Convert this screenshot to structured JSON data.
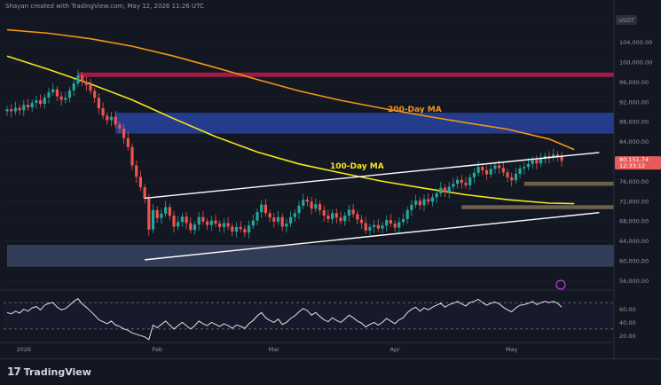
{
  "header": {
    "credit": "Shayan   created with TradingView.com, May 12, 2026 11:26 UTC"
  },
  "footer": {
    "brand": "TradingView"
  },
  "colors": {
    "background": "#131722",
    "up": "#26a69a",
    "down": "#ef5350",
    "ma200": "#f7931a",
    "ma100": "#f5e71b",
    "supply_zone": "#3b5bdb",
    "red_zone": "#c2185b",
    "demand_zone": "#5d6b8f",
    "rsi": "#e0e3eb"
  },
  "chart_data": {
    "type": "candlestick",
    "currency": "USDT",
    "price_axis": {
      "ticks": [
        "108,000.00",
        "104,000.00",
        "100,000.00",
        "96,000.00",
        "92,000.00",
        "88,000.00",
        "84,000.00",
        "80,000.00",
        "76,000.00",
        "72,000.00",
        "68,000.00",
        "64,000.00",
        "60,000.00",
        "56,000.00"
      ],
      "ylim": [
        55000,
        110000
      ]
    },
    "current_price": "80,151.74",
    "countdown": "12:33:12",
    "time_axis": [
      "2026",
      "Feb",
      "Mar",
      "Apr",
      "May"
    ],
    "annotations": {
      "ma200_label": "200-Day MA",
      "ma100_label": "100-Day MA"
    },
    "ma200": [
      {
        "t": 0,
        "v": 106500
      },
      {
        "t": 10,
        "v": 105800
      },
      {
        "t": 20,
        "v": 104700
      },
      {
        "t": 30,
        "v": 103200
      },
      {
        "t": 40,
        "v": 101200
      },
      {
        "t": 50,
        "v": 98900
      },
      {
        "t": 60,
        "v": 96500
      },
      {
        "t": 70,
        "v": 94200
      },
      {
        "t": 80,
        "v": 92300
      },
      {
        "t": 90,
        "v": 90700
      },
      {
        "t": 100,
        "v": 89200
      },
      {
        "t": 110,
        "v": 87800
      },
      {
        "t": 120,
        "v": 86500
      },
      {
        "t": 130,
        "v": 84500
      },
      {
        "t": 136,
        "v": 82400
      }
    ],
    "ma100": [
      {
        "t": 0,
        "v": 101200
      },
      {
        "t": 10,
        "v": 98500
      },
      {
        "t": 20,
        "v": 95600
      },
      {
        "t": 30,
        "v": 92400
      },
      {
        "t": 40,
        "v": 88600
      },
      {
        "t": 50,
        "v": 85000
      },
      {
        "t": 60,
        "v": 81900
      },
      {
        "t": 70,
        "v": 79500
      },
      {
        "t": 80,
        "v": 77700
      },
      {
        "t": 90,
        "v": 76000
      },
      {
        "t": 100,
        "v": 74600
      },
      {
        "t": 110,
        "v": 73300
      },
      {
        "t": 120,
        "v": 72300
      },
      {
        "t": 130,
        "v": 71600
      },
      {
        "t": 136,
        "v": 71500
      }
    ],
    "channel": {
      "upper": [
        {
          "t": 33,
          "v": 72600
        },
        {
          "t": 142,
          "v": 81800
        }
      ],
      "lower": [
        {
          "t": 33,
          "v": 60200
        },
        {
          "t": 142,
          "v": 69700
        }
      ]
    },
    "zones": [
      {
        "kind": "red",
        "t0": 17,
        "t1": 150,
        "v0": 97000,
        "v1": 97900
      },
      {
        "kind": "supply",
        "t0": 26,
        "t1": 150,
        "v0": 85600,
        "v1": 89800
      },
      {
        "kind": "demand-low",
        "t0": 0,
        "t1": 150,
        "v0": 58800,
        "v1": 63200
      },
      {
        "kind": "fvg",
        "t0": 124,
        "t1": 150,
        "v0": 75100,
        "v1": 75900
      },
      {
        "kind": "fvg",
        "t0": 109,
        "t1": 150,
        "v0": 70400,
        "v1": 71200
      }
    ],
    "close_series": [
      90500,
      90100,
      90800,
      90300,
      91400,
      90900,
      91800,
      92300,
      91600,
      92900,
      93900,
      94500,
      93100,
      92400,
      92800,
      94300,
      95700,
      97300,
      96100,
      95400,
      94200,
      92800,
      90700,
      89200,
      88300,
      89000,
      87400,
      86600,
      84700,
      82900,
      79200,
      76900,
      74800,
      72500,
      66300,
      70200,
      68600,
      69500,
      70800,
      69100,
      66900,
      67800,
      68900,
      67600,
      66200,
      67300,
      68800,
      67900,
      67200,
      68100,
      67500,
      66800,
      67600,
      66900,
      65900,
      66800,
      66400,
      65700,
      67100,
      68100,
      69800,
      71300,
      69600,
      68700,
      67900,
      68800,
      66900,
      67500,
      68800,
      69600,
      71100,
      72300,
      71900,
      70500,
      71400,
      70200,
      69100,
      68400,
      69600,
      68700,
      68000,
      69100,
      70300,
      69400,
      68300,
      67600,
      66100,
      66800,
      67200,
      66500,
      67100,
      68200,
      67500,
      66700,
      67800,
      68400,
      70200,
      71300,
      72100,
      71200,
      72400,
      71900,
      72800,
      73600,
      74700,
      73800,
      74900,
      75500,
      76300,
      75700,
      75200,
      76800,
      77700,
      78900,
      78200,
      77400,
      78500,
      79200,
      78700,
      77800,
      76800,
      76200,
      77500,
      78600,
      78900,
      79500,
      80300,
      79600,
      80500,
      81100,
      80800,
      81400,
      80900,
      80151.74
    ],
    "rsi": {
      "ticks": [
        "60.00",
        "40.00",
        "20.00"
      ],
      "ylim": [
        15,
        85
      ],
      "levels": [
        70,
        30
      ],
      "values": [
        55,
        53,
        57,
        54,
        60,
        57,
        62,
        64,
        59,
        66,
        69,
        70,
        63,
        59,
        61,
        66,
        72,
        76,
        68,
        63,
        57,
        51,
        44,
        41,
        38,
        42,
        36,
        34,
        30,
        28,
        24,
        22,
        20,
        18,
        14,
        36,
        32,
        37,
        42,
        36,
        30,
        35,
        40,
        35,
        30,
        35,
        42,
        38,
        35,
        40,
        37,
        34,
        38,
        35,
        31,
        36,
        34,
        31,
        38,
        43,
        50,
        55,
        47,
        43,
        40,
        45,
        37,
        40,
        46,
        50,
        56,
        61,
        58,
        51,
        55,
        49,
        44,
        41,
        47,
        43,
        40,
        45,
        51,
        47,
        42,
        39,
        33,
        37,
        40,
        36,
        40,
        46,
        42,
        38,
        44,
        47,
        55,
        60,
        63,
        57,
        62,
        59,
        63,
        66,
        69,
        63,
        67,
        69,
        72,
        68,
        65,
        70,
        72,
        75,
        70,
        66,
        69,
        71,
        68,
        63,
        59,
        56,
        62,
        66,
        67,
        69,
        72,
        67,
        70,
        72,
        70,
        72,
        69,
        63
      ]
    }
  }
}
